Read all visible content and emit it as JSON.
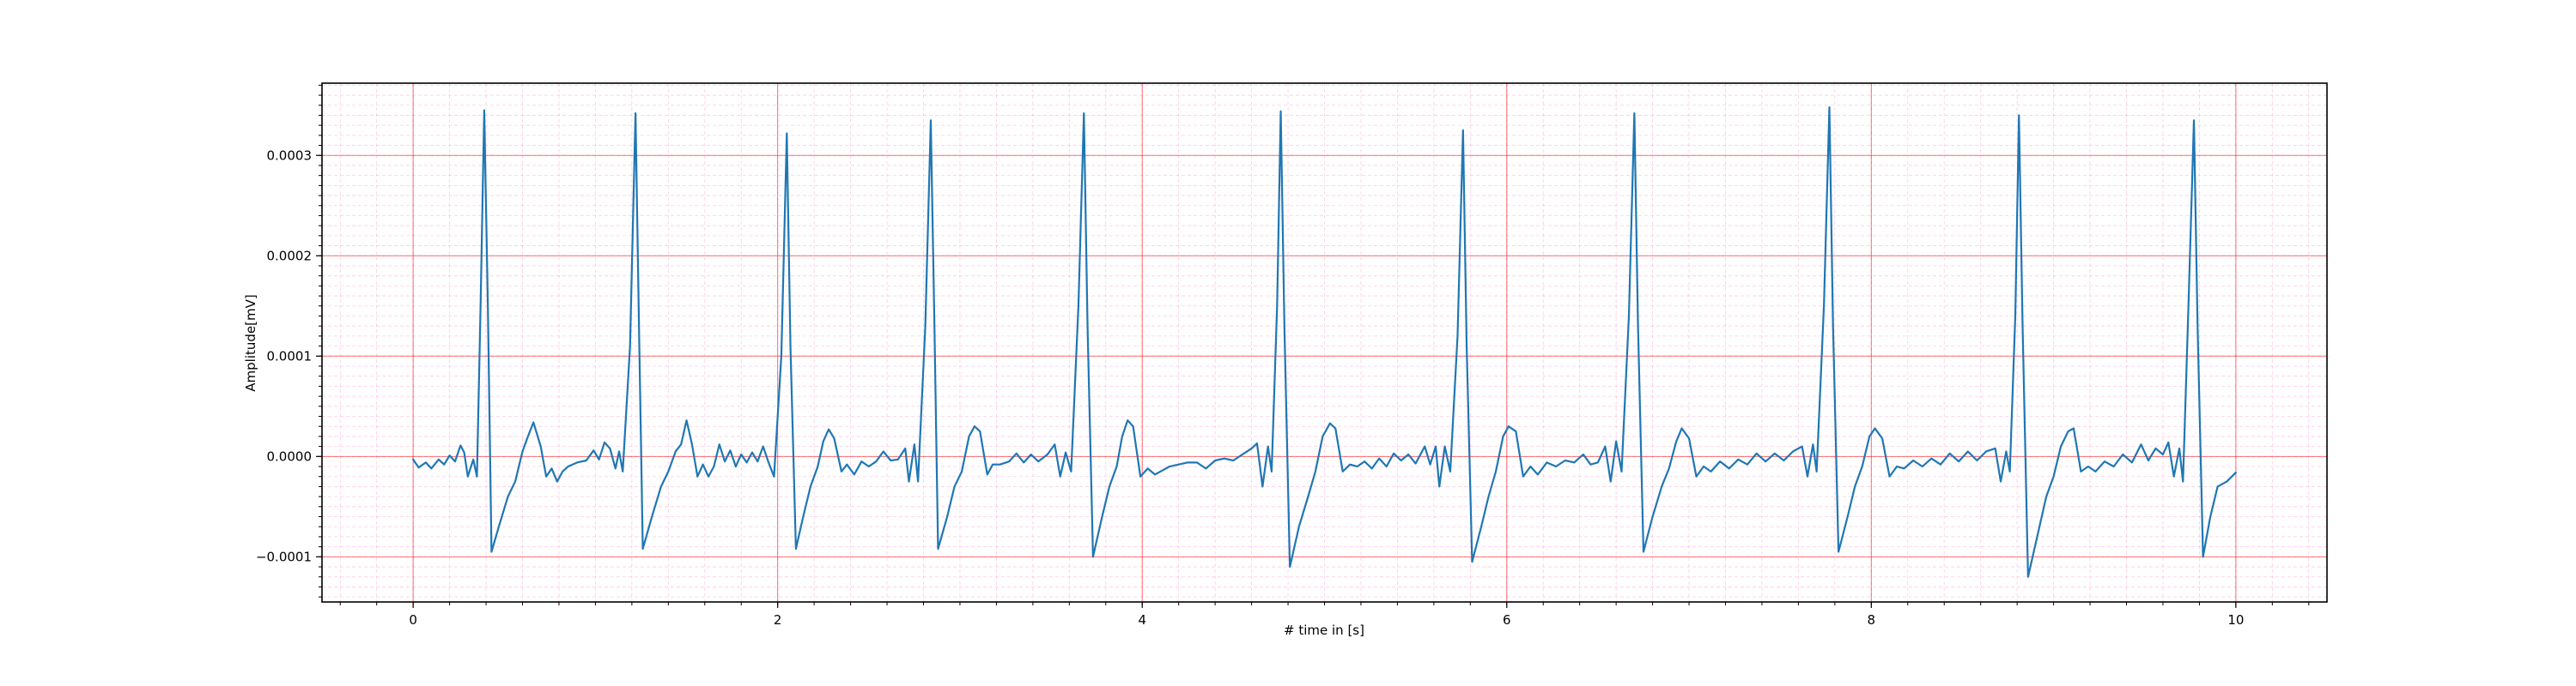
{
  "chart_data": {
    "type": "line",
    "title": "",
    "xlabel": "# time in [s]",
    "ylabel": "Amplitude[mV]",
    "xlim": [
      -0.5,
      10.5
    ],
    "ylim": [
      -0.000145,
      0.000372
    ],
    "x_ticks": [
      0,
      2,
      4,
      6,
      8,
      10
    ],
    "x_tick_labels": [
      "0",
      "2",
      "4",
      "6",
      "8",
      "10"
    ],
    "y_ticks": [
      -0.0001,
      0.0,
      0.0001,
      0.0002,
      0.0003
    ],
    "y_tick_labels": [
      "−0.0001",
      "0.0000",
      "0.0001",
      "0.0002",
      "0.0003"
    ],
    "x_minor_step": 0.2,
    "y_minor_step": 1e-05,
    "grid": true,
    "major_grid_color": "#ff0000",
    "minor_grid_color": "#ff69b4",
    "line_color": "#1f77b4",
    "series": [
      {
        "values": [
          [
            0.0,
            -3e-06
          ],
          [
            0.03,
            -1.1e-05
          ],
          [
            0.07,
            -6e-06
          ],
          [
            0.1,
            -1.2e-05
          ],
          [
            0.14,
            -3e-06
          ],
          [
            0.17,
            -8e-06
          ],
          [
            0.2,
            1e-06
          ],
          [
            0.23,
            -5e-06
          ],
          [
            0.26,
            1.1e-05
          ],
          [
            0.28,
            4e-06
          ],
          [
            0.3,
            -2e-05
          ],
          [
            0.33,
            -3e-06
          ],
          [
            0.35,
            -2e-05
          ],
          [
            0.37,
            0.00015
          ],
          [
            0.39,
            0.000345
          ],
          [
            0.41,
            0.00015
          ],
          [
            0.43,
            -9.5e-05
          ],
          [
            0.47,
            -7e-05
          ],
          [
            0.52,
            -4e-05
          ],
          [
            0.56,
            -2.5e-05
          ],
          [
            0.6,
            5e-06
          ],
          [
            0.63,
            2e-05
          ],
          [
            0.66,
            3.4e-05
          ],
          [
            0.7,
            1e-05
          ],
          [
            0.73,
            -2e-05
          ],
          [
            0.76,
            -1.2e-05
          ],
          [
            0.79,
            -2.5e-05
          ],
          [
            0.82,
            -1.5e-05
          ],
          [
            0.85,
            -1e-05
          ],
          [
            0.9,
            -6e-06
          ],
          [
            0.95,
            -4e-06
          ],
          [
            0.99,
            6e-06
          ],
          [
            1.02,
            -3e-06
          ],
          [
            1.05,
            1.4e-05
          ],
          [
            1.08,
            8e-06
          ],
          [
            1.11,
            -1.2e-05
          ],
          [
            1.13,
            5e-06
          ],
          [
            1.15,
            -1.5e-05
          ],
          [
            1.19,
            0.00011
          ],
          [
            1.22,
            0.000342
          ],
          [
            1.24,
            0.00012
          ],
          [
            1.26,
            -9.2e-05
          ],
          [
            1.31,
            -6e-05
          ],
          [
            1.36,
            -3e-05
          ],
          [
            1.4,
            -1.5e-05
          ],
          [
            1.44,
            5e-06
          ],
          [
            1.47,
            1.2e-05
          ],
          [
            1.5,
            3.6e-05
          ],
          [
            1.53,
            1.2e-05
          ],
          [
            1.56,
            -2e-05
          ],
          [
            1.59,
            -8e-06
          ],
          [
            1.62,
            -2e-05
          ],
          [
            1.65,
            -1e-05
          ],
          [
            1.68,
            1.2e-05
          ],
          [
            1.71,
            -5e-06
          ],
          [
            1.74,
            6e-06
          ],
          [
            1.77,
            -1e-05
          ],
          [
            1.8,
            2e-06
          ],
          [
            1.83,
            -6e-06
          ],
          [
            1.86,
            4e-06
          ],
          [
            1.89,
            -5e-06
          ],
          [
            1.92,
            1e-05
          ],
          [
            1.95,
            -6e-06
          ],
          [
            1.98,
            -2e-05
          ],
          [
            2.02,
            0.0001
          ],
          [
            2.05,
            0.000322
          ],
          [
            2.07,
            0.00011
          ],
          [
            2.1,
            -9.2e-05
          ],
          [
            2.14,
            -6e-05
          ],
          [
            2.18,
            -3e-05
          ],
          [
            2.22,
            -1e-05
          ],
          [
            2.25,
            1.5e-05
          ],
          [
            2.28,
            2.7e-05
          ],
          [
            2.31,
            1.8e-05
          ],
          [
            2.35,
            -1.5e-05
          ],
          [
            2.38,
            -8e-06
          ],
          [
            2.42,
            -1.8e-05
          ],
          [
            2.46,
            -5e-06
          ],
          [
            2.5,
            -1e-05
          ],
          [
            2.54,
            -5e-06
          ],
          [
            2.58,
            5e-06
          ],
          [
            2.62,
            -4e-06
          ],
          [
            2.66,
            -3e-06
          ],
          [
            2.7,
            8e-06
          ],
          [
            2.72,
            -2.5e-05
          ],
          [
            2.75,
            1.2e-05
          ],
          [
            2.77,
            -2.5e-05
          ],
          [
            2.81,
            0.00013
          ],
          [
            2.84,
            0.000335
          ],
          [
            2.86,
            0.00013
          ],
          [
            2.88,
            -9.2e-05
          ],
          [
            2.93,
            -6e-05
          ],
          [
            2.97,
            -3e-05
          ],
          [
            3.01,
            -1.5e-05
          ],
          [
            3.05,
            2e-05
          ],
          [
            3.08,
            3e-05
          ],
          [
            3.11,
            2.5e-05
          ],
          [
            3.15,
            -1.8e-05
          ],
          [
            3.18,
            -8e-06
          ],
          [
            3.22,
            -8e-06
          ],
          [
            3.27,
            -5e-06
          ],
          [
            3.31,
            3e-06
          ],
          [
            3.35,
            -6e-06
          ],
          [
            3.39,
            2e-06
          ],
          [
            3.43,
            -5e-06
          ],
          [
            3.48,
            2e-06
          ],
          [
            3.52,
            1.2e-05
          ],
          [
            3.55,
            -2e-05
          ],
          [
            3.58,
            4e-06
          ],
          [
            3.61,
            -1.5e-05
          ],
          [
            3.65,
            0.00015
          ],
          [
            3.68,
            0.000342
          ],
          [
            3.7,
            0.00013
          ],
          [
            3.73,
            -0.0001
          ],
          [
            3.78,
            -6e-05
          ],
          [
            3.82,
            -3e-05
          ],
          [
            3.86,
            -1e-05
          ],
          [
            3.89,
            2e-05
          ],
          [
            3.92,
            3.6e-05
          ],
          [
            3.95,
            3e-05
          ],
          [
            3.99,
            -2e-05
          ],
          [
            4.03,
            -1.2e-05
          ],
          [
            4.07,
            -1.8e-05
          ],
          [
            4.11,
            -1.4e-05
          ],
          [
            4.15,
            -1e-05
          ],
          [
            4.2,
            -8e-06
          ],
          [
            4.25,
            -6e-06
          ],
          [
            4.3,
            -6e-06
          ],
          [
            4.35,
            -1.2e-05
          ],
          [
            4.4,
            -4e-06
          ],
          [
            4.45,
            -2e-06
          ],
          [
            4.5,
            -4e-06
          ],
          [
            4.55,
            2e-06
          ],
          [
            4.6,
            8e-06
          ],
          [
            4.63,
            1.3e-05
          ],
          [
            4.66,
            -3e-05
          ],
          [
            4.69,
            1e-05
          ],
          [
            4.71,
            -1.5e-05
          ],
          [
            4.74,
            0.00015
          ],
          [
            4.76,
            0.000344
          ],
          [
            4.78,
            0.00013
          ],
          [
            4.81,
            -0.00011
          ],
          [
            4.86,
            -7e-05
          ],
          [
            4.91,
            -4e-05
          ],
          [
            4.95,
            -1.5e-05
          ],
          [
            4.99,
            2e-05
          ],
          [
            5.03,
            3.3e-05
          ],
          [
            5.06,
            2.8e-05
          ],
          [
            5.1,
            -1.5e-05
          ],
          [
            5.14,
            -8e-06
          ],
          [
            5.18,
            -1e-05
          ],
          [
            5.22,
            -5e-06
          ],
          [
            5.26,
            -1.2e-05
          ],
          [
            5.3,
            -2e-06
          ],
          [
            5.34,
            -1e-05
          ],
          [
            5.38,
            3e-06
          ],
          [
            5.42,
            -4e-06
          ],
          [
            5.46,
            2e-06
          ],
          [
            5.5,
            -7e-06
          ],
          [
            5.55,
            1e-05
          ],
          [
            5.58,
            -8e-06
          ],
          [
            5.61,
            1e-05
          ],
          [
            5.63,
            -3e-05
          ],
          [
            5.66,
            1e-05
          ],
          [
            5.69,
            -1.5e-05
          ],
          [
            5.73,
            0.00012
          ],
          [
            5.76,
            0.000325
          ],
          [
            5.78,
            0.00011
          ],
          [
            5.81,
            -0.000105
          ],
          [
            5.86,
            -7e-05
          ],
          [
            5.9,
            -4e-05
          ],
          [
            5.94,
            -1.5e-05
          ],
          [
            5.98,
            2e-05
          ],
          [
            6.01,
            3e-05
          ],
          [
            6.05,
            2.5e-05
          ],
          [
            6.09,
            -2e-05
          ],
          [
            6.13,
            -1e-05
          ],
          [
            6.17,
            -1.8e-05
          ],
          [
            6.22,
            -6e-06
          ],
          [
            6.27,
            -1e-05
          ],
          [
            6.32,
            -4e-06
          ],
          [
            6.37,
            -6e-06
          ],
          [
            6.42,
            2e-06
          ],
          [
            6.46,
            -8e-06
          ],
          [
            6.5,
            -6e-06
          ],
          [
            6.54,
            1e-05
          ],
          [
            6.57,
            -2.5e-05
          ],
          [
            6.6,
            1.5e-05
          ],
          [
            6.63,
            -1.5e-05
          ],
          [
            6.67,
            0.00014
          ],
          [
            6.7,
            0.000342
          ],
          [
            6.72,
            0.00013
          ],
          [
            6.75,
            -9.5e-05
          ],
          [
            6.8,
            -6e-05
          ],
          [
            6.85,
            -3e-05
          ],
          [
            6.89,
            -1.2e-05
          ],
          [
            6.93,
            1.5e-05
          ],
          [
            6.96,
            2.8e-05
          ],
          [
            7.0,
            1.8e-05
          ],
          [
            7.04,
            -2e-05
          ],
          [
            7.08,
            -1e-05
          ],
          [
            7.12,
            -1.5e-05
          ],
          [
            7.17,
            -5e-06
          ],
          [
            7.22,
            -1.2e-05
          ],
          [
            7.27,
            -3e-06
          ],
          [
            7.32,
            -8e-06
          ],
          [
            7.37,
            3e-06
          ],
          [
            7.42,
            -5e-06
          ],
          [
            7.47,
            3e-06
          ],
          [
            7.52,
            -4e-06
          ],
          [
            7.57,
            5e-06
          ],
          [
            7.62,
            1e-05
          ],
          [
            7.65,
            -2e-05
          ],
          [
            7.68,
            1.2e-05
          ],
          [
            7.7,
            -1.5e-05
          ],
          [
            7.74,
            0.00015
          ],
          [
            7.77,
            0.000348
          ],
          [
            7.79,
            0.00013
          ],
          [
            7.82,
            -9.5e-05
          ],
          [
            7.87,
            -6e-05
          ],
          [
            7.91,
            -3e-05
          ],
          [
            7.95,
            -1e-05
          ],
          [
            7.99,
            2e-05
          ],
          [
            8.02,
            2.8e-05
          ],
          [
            8.06,
            1.8e-05
          ],
          [
            8.1,
            -2e-05
          ],
          [
            8.14,
            -1e-05
          ],
          [
            8.18,
            -1.2e-05
          ],
          [
            8.23,
            -4e-06
          ],
          [
            8.28,
            -1e-05
          ],
          [
            8.33,
            -2e-06
          ],
          [
            8.38,
            -8e-06
          ],
          [
            8.43,
            3e-06
          ],
          [
            8.48,
            -5e-06
          ],
          [
            8.53,
            5e-06
          ],
          [
            8.58,
            -4e-06
          ],
          [
            8.63,
            5e-06
          ],
          [
            8.68,
            8e-06
          ],
          [
            8.71,
            -2.5e-05
          ],
          [
            8.74,
            5e-06
          ],
          [
            8.76,
            -1.5e-05
          ],
          [
            8.79,
            0.00014
          ],
          [
            8.81,
            0.00034
          ],
          [
            8.83,
            0.00013
          ],
          [
            8.86,
            -0.00012
          ],
          [
            8.91,
            -8e-05
          ],
          [
            8.96,
            -4e-05
          ],
          [
            9.0,
            -2e-05
          ],
          [
            9.04,
            1e-05
          ],
          [
            9.08,
            2.5e-05
          ],
          [
            9.11,
            2.8e-05
          ],
          [
            9.15,
            -1.5e-05
          ],
          [
            9.19,
            -1e-05
          ],
          [
            9.23,
            -1.5e-05
          ],
          [
            9.28,
            -5e-06
          ],
          [
            9.33,
            -1e-05
          ],
          [
            9.38,
            2e-06
          ],
          [
            9.43,
            -6e-06
          ],
          [
            9.48,
            1.2e-05
          ],
          [
            9.52,
            -4e-06
          ],
          [
            9.56,
            8e-06
          ],
          [
            9.6,
            2e-06
          ],
          [
            9.63,
            1.4e-05
          ],
          [
            9.66,
            -2e-05
          ],
          [
            9.69,
            8e-06
          ],
          [
            9.71,
            -2.5e-05
          ],
          [
            9.74,
            0.00015
          ],
          [
            9.77,
            0.000335
          ],
          [
            9.79,
            0.00013
          ],
          [
            9.82,
            -0.0001
          ],
          [
            9.86,
            -6e-05
          ],
          [
            9.9,
            -3e-05
          ],
          [
            9.95,
            -2.5e-05
          ],
          [
            10.0,
            -1.6e-05
          ]
        ]
      }
    ]
  }
}
